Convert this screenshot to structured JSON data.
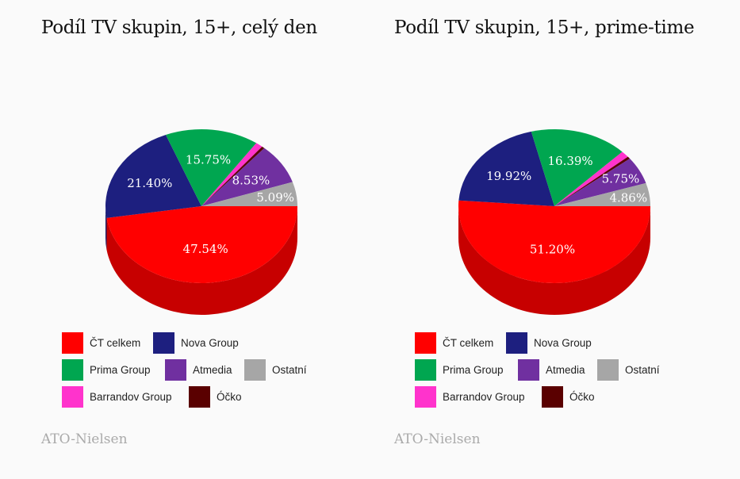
{
  "chart_data": [
    {
      "type": "pie",
      "title": "Podíl TV skupin, 15+, celý den",
      "source": "ATO-Nielsen",
      "slices": [
        {
          "name": "ČT celkem",
          "value": 47.54,
          "label": "47.54%"
        },
        {
          "name": "Nova Group",
          "value": 21.4,
          "label": "21.40%"
        },
        {
          "name": "Prima Group",
          "value": 15.75,
          "label": "15.75%"
        },
        {
          "name": "Barrandov Group",
          "value": 1.2,
          "label": ""
        },
        {
          "name": "Óčko",
          "value": 0.49,
          "label": ""
        },
        {
          "name": "Atmedia",
          "value": 8.53,
          "label": "8.53%"
        },
        {
          "name": "Ostatní",
          "value": 5.09,
          "label": "5.09%"
        }
      ]
    },
    {
      "type": "pie",
      "title": "Podíl TV skupin, 15+, prime-time",
      "source": "ATO-Nielsen",
      "slices": [
        {
          "name": "ČT celkem",
          "value": 51.2,
          "label": "51.20%"
        },
        {
          "name": "Nova Group",
          "value": 19.92,
          "label": "19.92%"
        },
        {
          "name": "Prima Group",
          "value": 16.39,
          "label": "16.39%"
        },
        {
          "name": "Barrandov Group",
          "value": 1.38,
          "label": ""
        },
        {
          "name": "Óčko",
          "value": 0.5,
          "label": ""
        },
        {
          "name": "Atmedia",
          "value": 5.75,
          "label": "5.75%"
        },
        {
          "name": "Ostatní",
          "value": 4.86,
          "label": "4.86%"
        }
      ]
    }
  ],
  "legend": [
    {
      "name": "ČT celkem",
      "color": "#ff0000"
    },
    {
      "name": "Nova Group",
      "color": "#1d1f7f"
    },
    {
      "name": "Prima Group",
      "color": "#00a650"
    },
    {
      "name": "Atmedia",
      "color": "#7030a0"
    },
    {
      "name": "Ostatní",
      "color": "#a6a6a6"
    },
    {
      "name": "Barrandov Group",
      "color": "#ff33cc"
    },
    {
      "name": "Óčko",
      "color": "#5a0000"
    }
  ],
  "colors": {
    "ČT celkem": "#ff0000",
    "Nova Group": "#1d1f7f",
    "Prima Group": "#00a650",
    "Atmedia": "#7030a0",
    "Ostatní": "#a6a6a6",
    "Barrandov Group": "#ff33cc",
    "Óčko": "#5a0000"
  }
}
